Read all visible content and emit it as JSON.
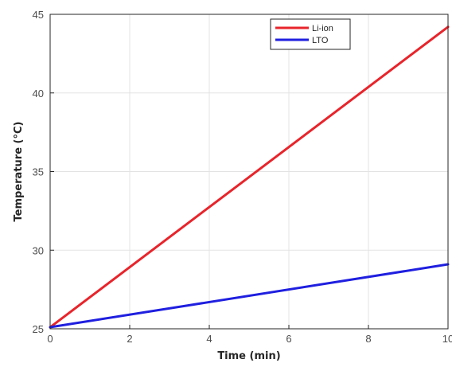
{
  "chart_data": {
    "type": "line",
    "title": "",
    "xlabel": "Time (min)",
    "ylabel": "Temperature (°C)",
    "xlim": [
      0,
      10
    ],
    "ylim": [
      25,
      45
    ],
    "x_ticks": [
      0,
      2,
      4,
      6,
      8,
      10
    ],
    "y_ticks": [
      25,
      30,
      35,
      40,
      45
    ],
    "x_tick_labels": [
      "0",
      "2",
      "4",
      "6",
      "8",
      "10"
    ],
    "y_tick_labels": [
      "25",
      "30",
      "35",
      "40",
      "45"
    ],
    "grid": true,
    "legend_position": "top-right",
    "series": [
      {
        "name": "Li-ion",
        "color": "#e8242b",
        "x": [
          0,
          10
        ],
        "y": [
          25.1,
          44.2
        ]
      },
      {
        "name": "LTO",
        "color": "#1f1fe0",
        "x": [
          0,
          10
        ],
        "y": [
          25.1,
          29.1
        ]
      }
    ]
  }
}
